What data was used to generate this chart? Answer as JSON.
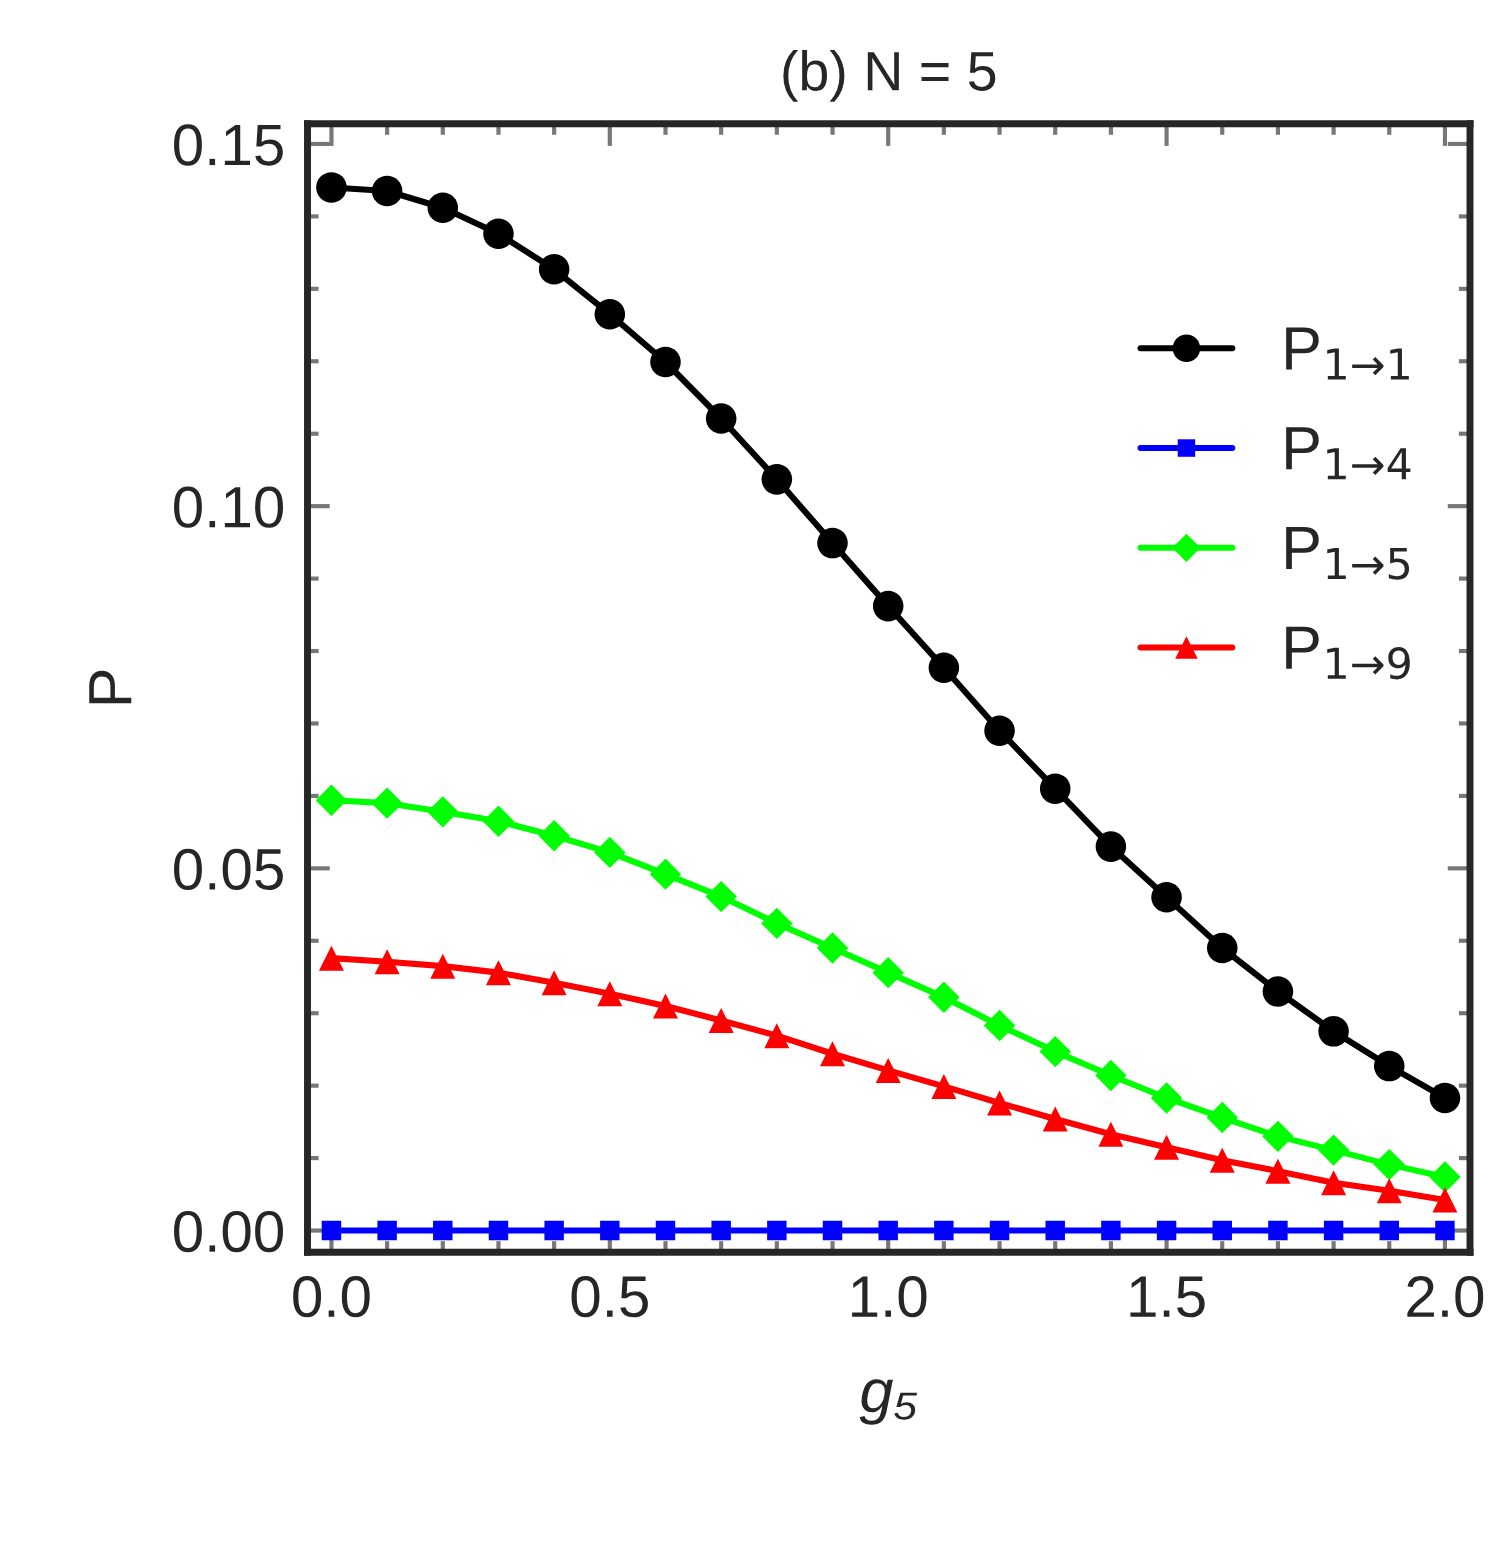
{
  "chart_data": {
    "type": "line",
    "title": "(b) N = 5",
    "xlabel": "g₅",
    "ylabel": "P",
    "x": [
      0.0,
      0.1,
      0.2,
      0.3,
      0.4,
      0.5,
      0.6,
      0.7,
      0.8,
      0.9,
      1.0,
      1.1,
      1.2,
      1.3,
      1.4,
      1.5,
      1.6,
      1.7,
      1.8,
      1.9,
      2.0
    ],
    "series": [
      {
        "name": "P$_{1→1}$",
        "color": "#000000",
        "marker": "circle",
        "values": [
          0.144,
          0.1435,
          0.1412,
          0.1376,
          0.1327,
          0.1265,
          0.1199,
          0.1121,
          0.1037,
          0.0949,
          0.0862,
          0.0777,
          0.069,
          0.061,
          0.053,
          0.046,
          0.039,
          0.033,
          0.0275,
          0.0227,
          0.0183
        ]
      },
      {
        "name": "P$_{1→4}$",
        "color": "#0000ff",
        "marker": "square",
        "values": [
          0,
          0,
          0,
          0,
          0,
          0,
          0,
          0,
          0,
          0,
          0,
          0,
          0,
          0,
          0,
          0,
          0,
          0,
          0,
          0,
          0
        ]
      },
      {
        "name": "P$_{1→5}$",
        "color": "#00ff00",
        "marker": "diamond",
        "values": [
          0.0594,
          0.059,
          0.0578,
          0.0565,
          0.0545,
          0.0522,
          0.0492,
          0.0461,
          0.0424,
          0.039,
          0.0356,
          0.0322,
          0.0283,
          0.0247,
          0.0214,
          0.0183,
          0.0156,
          0.013,
          0.0111,
          0.0091,
          0.0074
        ]
      },
      {
        "name": "P$_{1→9}$",
        "color": "#ff0000",
        "marker": "triangle",
        "values": [
          0.0376,
          0.0371,
          0.0365,
          0.0356,
          0.0342,
          0.0327,
          0.031,
          0.029,
          0.0269,
          0.0244,
          0.0221,
          0.0199,
          0.0176,
          0.0154,
          0.0133,
          0.0115,
          0.0097,
          0.0082,
          0.0066,
          0.0055,
          0.0042
        ]
      }
    ],
    "xlim": [
      -0.043,
      2.045
    ],
    "ylim": [
      -0.003,
      0.1528
    ],
    "xticks": [
      {
        "value": 0,
        "label": "0.0"
      },
      0.5,
      {
        "value": 1,
        "label": "1.0"
      },
      1.5,
      {
        "value": 2,
        "label": "2.0"
      }
    ],
    "yticks": [
      {
        "value": 0,
        "label": "0.00"
      },
      0.05,
      {
        "value": 0.1,
        "label": "0.10"
      },
      0.15
    ],
    "grid": false,
    "legend": "right",
    "line_style": "solid"
  }
}
